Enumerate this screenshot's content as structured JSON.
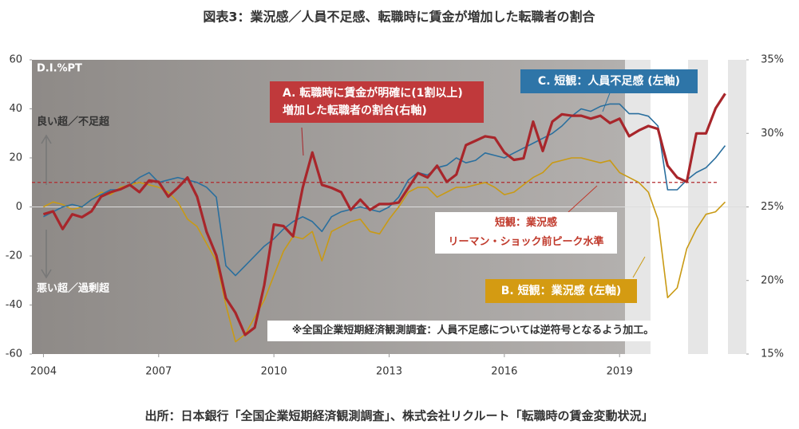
{
  "chart_data": {
    "type": "line",
    "title": "図表3：業況感／人員不足感、転職時に賃金が増加した転職者の割合",
    "y_unit_label": "D.I.%PT",
    "y_upper_label": "良い超／不足超",
    "y_lower_label": "悪い超／過剰超",
    "note": "※全国企業短期経済観測調査：人員不足感については逆符号となるよう加工。",
    "source": "出所：日本銀行「全国企業短期経済観測調査」、株式会社リクルート「転職時の賃金変動状況」",
    "reference_line": {
      "value": 10,
      "color": "#b22a2e",
      "labels": [
        "短観：業況感",
        "リーマン・ショック前ピーク水準"
      ]
    },
    "x": [
      2004,
      2004.25,
      2004.5,
      2004.75,
      2005,
      2005.25,
      2005.5,
      2005.75,
      2006,
      2006.25,
      2006.5,
      2006.75,
      2007,
      2007.25,
      2007.5,
      2007.75,
      2008,
      2008.25,
      2008.5,
      2008.75,
      2009,
      2009.25,
      2009.5,
      2009.75,
      2010,
      2010.25,
      2010.5,
      2010.75,
      2011,
      2011.25,
      2011.5,
      2011.75,
      2012,
      2012.25,
      2012.5,
      2012.75,
      2013,
      2013.25,
      2013.5,
      2013.75,
      2014,
      2014.25,
      2014.5,
      2014.75,
      2015,
      2015.25,
      2015.5,
      2015.75,
      2016,
      2016.25,
      2016.5,
      2016.75,
      2017,
      2017.25,
      2017.5,
      2017.75,
      2018,
      2018.25,
      2018.5,
      2018.75,
      2019,
      2019.25,
      2019.5,
      2019.75,
      2020,
      2020.25,
      2020.5,
      2020.75,
      2021,
      2021.25,
      2021.5,
      2021.75
    ],
    "xlim": [
      2003.7,
      2022.3
    ],
    "xticks": [
      2004,
      2007,
      2010,
      2013,
      2016,
      2019
    ],
    "ylim": [
      -60,
      60
    ],
    "yticks": [
      -60,
      -40,
      -20,
      0,
      20,
      40,
      60
    ],
    "y2lim": [
      15,
      35
    ],
    "y2ticks": [
      {
        "value": 15,
        "label": "15%"
      },
      {
        "value": 20,
        "label": "20%"
      },
      {
        "value": 25,
        "label": "25%"
      },
      {
        "value": 30,
        "label": "30%"
      },
      {
        "value": 35,
        "label": "35%"
      }
    ],
    "series": [
      {
        "name": "C. 短観：人員不足感 (左軸)",
        "color": "#2a6f9e",
        "values": [
          -4,
          -2,
          0,
          1,
          0,
          3,
          5,
          7,
          7,
          9,
          12,
          14,
          10,
          11,
          12,
          11,
          10,
          8,
          4,
          -24,
          -28,
          -24,
          -20,
          -16,
          -13,
          -9,
          -6,
          -4,
          -6,
          -10,
          -4,
          -2,
          -1,
          0,
          -1,
          -2,
          0,
          4,
          11,
          14,
          13,
          16,
          17,
          20,
          18,
          19,
          22,
          21,
          20,
          22,
          24,
          26,
          28,
          30,
          33,
          37,
          40,
          39,
          41,
          42,
          42,
          38,
          38,
          37,
          33,
          7,
          7,
          11,
          14,
          16,
          20,
          25
        ]
      },
      {
        "name": "B. 短観：業況感 (左軸)",
        "color": "#c99a14",
        "values": [
          0,
          2,
          1,
          -1,
          0,
          3,
          6,
          5,
          8,
          9,
          10,
          9,
          8,
          6,
          2,
          -5,
          -8,
          -15,
          -22,
          -40,
          -55,
          -52,
          -45,
          -38,
          -28,
          -18,
          -12,
          -13,
          -10,
          -22,
          -10,
          -8,
          -6,
          -5,
          -10,
          -11,
          -5,
          0,
          6,
          8,
          8,
          4,
          6,
          8,
          8,
          9,
          10,
          8,
          5,
          6,
          9,
          12,
          14,
          18,
          19,
          20,
          20,
          19,
          18,
          19,
          14,
          12,
          10,
          6,
          -5,
          -37,
          -33,
          -17,
          -9,
          -3,
          -2,
          2
        ]
      },
      {
        "name": "A. 転職時に賃金が明確に(1割以上)増加した転職者の割合(右軸)",
        "color": "#a8262b",
        "axis": "y2",
        "values": [
          24.5,
          24.7,
          23.5,
          24.5,
          24.3,
          24.7,
          25.7,
          26,
          26.2,
          26.5,
          26,
          26.8,
          26.7,
          25.7,
          26.3,
          27,
          25.7,
          23.3,
          21.7,
          18.8,
          17.8,
          16.3,
          16.8,
          19.7,
          23.8,
          23.7,
          23,
          26.3,
          28.7,
          26.5,
          26.3,
          26,
          24.8,
          25.5,
          24.8,
          25.2,
          25.2,
          25.3,
          26.3,
          27.3,
          27,
          27.8,
          26.7,
          27.2,
          29.2,
          29.5,
          29.8,
          29.7,
          28.7,
          28.2,
          28.3,
          30.8,
          28.8,
          30.8,
          31.3,
          31.2,
          31.2,
          31,
          31.2,
          30.7,
          31,
          29.8,
          30.2,
          30.5,
          30.3,
          27.8,
          27,
          26.7,
          30,
          30,
          31.7,
          32.7
        ]
      }
    ]
  }
}
